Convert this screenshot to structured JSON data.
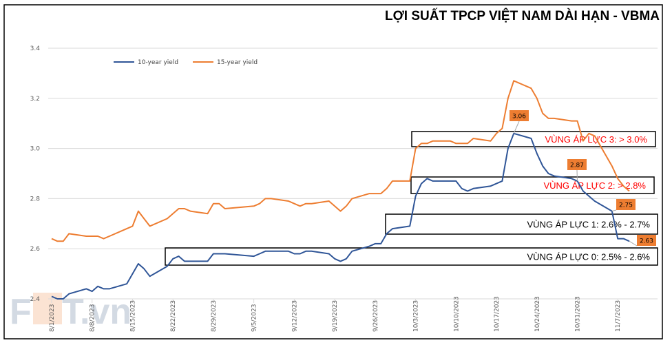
{
  "chart_data": {
    "type": "line",
    "title": "LỢI SUẤT TPCP VIỆT NAM DÀI HẠN - VBMA",
    "xlabel": "",
    "ylabel": "",
    "ylim": [
      2.4,
      3.4
    ],
    "yticks": [
      "2.4",
      "2.6",
      "2.8",
      "3.0",
      "3.2",
      "3.4"
    ],
    "xticks": [
      "8/1/2023",
      "8/8/2023",
      "8/15/2023",
      "8/22/2023",
      "8/29/2023",
      "9/5/2023",
      "9/12/2023",
      "9/19/2023",
      "9/26/2023",
      "10/3/2023",
      "10/10/2023",
      "10/17/2023",
      "10/24/2023",
      "10/31/2023",
      "11/7/2023"
    ],
    "grid": true,
    "legend_position": "top-left",
    "x": [
      "2023-08-01",
      "2023-08-02",
      "2023-08-03",
      "2023-08-04",
      "2023-08-07",
      "2023-08-08",
      "2023-08-09",
      "2023-08-10",
      "2023-08-11",
      "2023-08-14",
      "2023-08-15",
      "2023-08-16",
      "2023-08-17",
      "2023-08-18",
      "2023-08-21",
      "2023-08-22",
      "2023-08-23",
      "2023-08-24",
      "2023-08-25",
      "2023-08-28",
      "2023-08-29",
      "2023-08-30",
      "2023-08-31",
      "2023-09-05",
      "2023-09-06",
      "2023-09-07",
      "2023-09-08",
      "2023-09-11",
      "2023-09-12",
      "2023-09-13",
      "2023-09-14",
      "2023-09-15",
      "2023-09-18",
      "2023-09-19",
      "2023-09-20",
      "2023-09-21",
      "2023-09-22",
      "2023-09-25",
      "2023-09-26",
      "2023-09-27",
      "2023-09-28",
      "2023-09-29",
      "2023-10-02",
      "2023-10-03",
      "2023-10-04",
      "2023-10-05",
      "2023-10-06",
      "2023-10-09",
      "2023-10-10",
      "2023-10-11",
      "2023-10-12",
      "2023-10-13",
      "2023-10-16",
      "2023-10-17",
      "2023-10-18",
      "2023-10-19",
      "2023-10-20",
      "2023-10-23",
      "2023-10-24",
      "2023-10-25",
      "2023-10-26",
      "2023-10-27",
      "2023-10-30",
      "2023-10-31",
      "2023-11-01",
      "2023-11-02",
      "2023-11-03",
      "2023-11-06",
      "2023-11-07",
      "2023-11-08",
      "2023-11-09"
    ],
    "series": [
      {
        "name": "10-year yield",
        "color": "#2F5597",
        "values": [
          2.41,
          2.4,
          2.4,
          2.42,
          2.44,
          2.43,
          2.45,
          2.44,
          2.44,
          2.46,
          2.5,
          2.54,
          2.52,
          2.49,
          2.53,
          2.56,
          2.57,
          2.55,
          2.55,
          2.55,
          2.58,
          2.58,
          2.58,
          2.57,
          2.58,
          2.59,
          2.59,
          2.59,
          2.58,
          2.58,
          2.59,
          2.59,
          2.58,
          2.56,
          2.55,
          2.56,
          2.59,
          2.61,
          2.62,
          2.62,
          2.66,
          2.68,
          2.69,
          2.81,
          2.86,
          2.88,
          2.87,
          2.87,
          2.87,
          2.84,
          2.83,
          2.84,
          2.85,
          2.86,
          2.87,
          3.0,
          3.06,
          3.04,
          2.98,
          2.93,
          2.9,
          2.89,
          2.88,
          2.87,
          2.83,
          2.81,
          2.79,
          2.75,
          2.64,
          2.64,
          2.63
        ]
      },
      {
        "name": "15-year yield",
        "color": "#ED7D31",
        "values": [
          2.64,
          2.63,
          2.63,
          2.66,
          2.65,
          2.65,
          2.65,
          2.64,
          2.65,
          2.68,
          2.69,
          2.75,
          2.72,
          2.69,
          2.72,
          2.74,
          2.76,
          2.76,
          2.75,
          2.74,
          2.78,
          2.78,
          2.76,
          2.77,
          2.78,
          2.8,
          2.8,
          2.79,
          2.78,
          2.77,
          2.78,
          2.78,
          2.79,
          2.77,
          2.75,
          2.77,
          2.8,
          2.82,
          2.82,
          2.82,
          2.84,
          2.87,
          2.87,
          3.0,
          3.02,
          3.02,
          3.03,
          3.03,
          3.02,
          3.02,
          3.02,
          3.04,
          3.03,
          3.06,
          3.08,
          3.2,
          3.27,
          3.24,
          3.2,
          3.14,
          3.12,
          3.12,
          3.11,
          3.11,
          3.03,
          3.06,
          3.05,
          2.93,
          2.88,
          2.85,
          2.83
        ]
      }
    ],
    "data_labels": [
      {
        "date": "2023-10-20",
        "text": "3.06"
      },
      {
        "date": "2023-10-31",
        "text": "2.87"
      },
      {
        "date": "2023-11-06",
        "text": "2.75"
      },
      {
        "date": "2023-11-09",
        "text": "2.63"
      }
    ],
    "zones": [
      {
        "text": "VÙNG ÁP LỰC 3: > 3.0%",
        "color": "#FF0000"
      },
      {
        "text": "VÙNG ÁP LỰC 2: > 2.8%",
        "color": "#FF0000"
      },
      {
        "text": "VÙNG ÁP LỰC 1: 2.6% - 2.7%",
        "color": "#000000"
      },
      {
        "text": "VÙNG ÁP LỰC 0: 2.5% - 2.6%",
        "color": "#000000"
      }
    ],
    "label_color": "#ED7D31"
  },
  "watermark": "FIDT.vn"
}
